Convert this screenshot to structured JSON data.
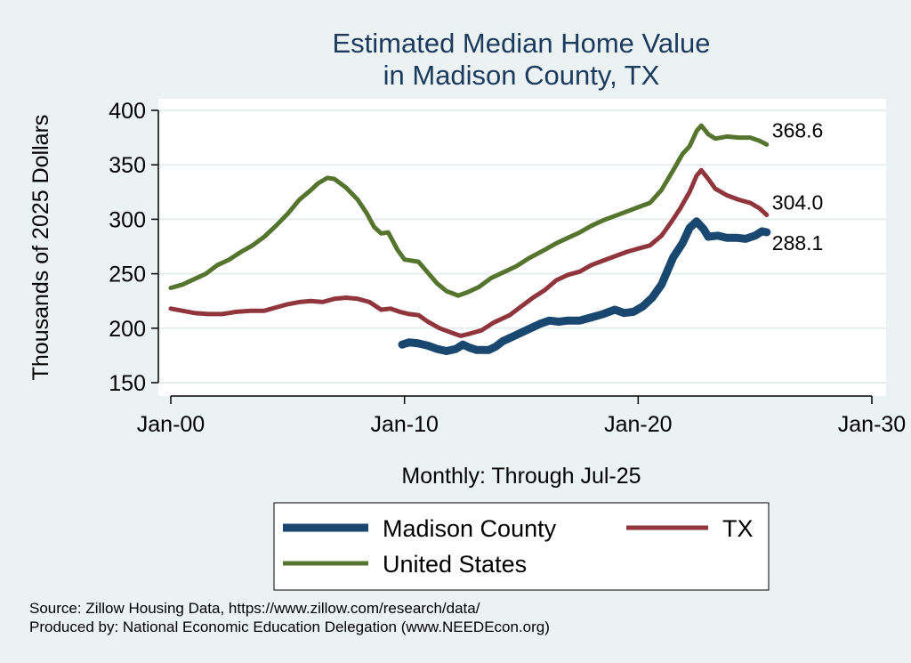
{
  "chart_data": {
    "type": "line",
    "title": [
      "Estimated Median Home Value",
      "in Madison County, TX"
    ],
    "xlabel": "Monthly: Through Jul-25",
    "ylabel": "Thousands of 2025 Dollars",
    "xlim": [
      2000,
      2030
    ],
    "ylim": [
      140,
      410
    ],
    "xticks": [
      {
        "value": 2000,
        "label": "Jan-00"
      },
      {
        "value": 2010,
        "label": "Jan-10"
      },
      {
        "value": 2020,
        "label": "Jan-20"
      },
      {
        "value": 2030,
        "label": "Jan-30"
      }
    ],
    "yticks": [
      150,
      200,
      250,
      300,
      350,
      400
    ],
    "grid": true,
    "legend_position": "bottom",
    "series": [
      {
        "name": "Madison County",
        "color": "#1a476f",
        "end_label": "288.1",
        "points": [
          [
            2009.9,
            185
          ],
          [
            2010.2,
            187
          ],
          [
            2010.6,
            186
          ],
          [
            2011.0,
            184
          ],
          [
            2011.4,
            181
          ],
          [
            2011.8,
            179
          ],
          [
            2012.2,
            181
          ],
          [
            2012.5,
            185
          ],
          [
            2012.8,
            182
          ],
          [
            2013.1,
            180
          ],
          [
            2013.6,
            180
          ],
          [
            2013.9,
            183
          ],
          [
            2014.2,
            188
          ],
          [
            2014.7,
            193
          ],
          [
            2015.3,
            199
          ],
          [
            2015.8,
            204
          ],
          [
            2016.2,
            207
          ],
          [
            2016.6,
            206
          ],
          [
            2017.0,
            207
          ],
          [
            2017.5,
            207
          ],
          [
            2018.0,
            210
          ],
          [
            2018.5,
            213
          ],
          [
            2019.0,
            217
          ],
          [
            2019.4,
            214
          ],
          [
            2019.8,
            215
          ],
          [
            2020.2,
            220
          ],
          [
            2020.6,
            228
          ],
          [
            2021.0,
            240
          ],
          [
            2021.5,
            265
          ],
          [
            2021.9,
            278
          ],
          [
            2022.2,
            292
          ],
          [
            2022.5,
            298
          ],
          [
            2022.8,
            291
          ],
          [
            2023.0,
            284
          ],
          [
            2023.4,
            285
          ],
          [
            2023.8,
            283
          ],
          [
            2024.2,
            283
          ],
          [
            2024.6,
            282
          ],
          [
            2025.0,
            285
          ],
          [
            2025.3,
            289
          ],
          [
            2025.5,
            288.1
          ]
        ]
      },
      {
        "name": "TX",
        "color": "#90353b",
        "end_label": "304.0",
        "points": [
          [
            2000.0,
            218
          ],
          [
            2000.5,
            216
          ],
          [
            2001.0,
            214
          ],
          [
            2001.6,
            213
          ],
          [
            2002.2,
            213
          ],
          [
            2002.8,
            215
          ],
          [
            2003.4,
            216
          ],
          [
            2004.0,
            216
          ],
          [
            2004.5,
            219
          ],
          [
            2005.0,
            222
          ],
          [
            2005.5,
            224
          ],
          [
            2006.0,
            225
          ],
          [
            2006.5,
            224
          ],
          [
            2007.0,
            227
          ],
          [
            2007.5,
            228
          ],
          [
            2008.0,
            227
          ],
          [
            2008.5,
            224
          ],
          [
            2009.0,
            217
          ],
          [
            2009.4,
            218
          ],
          [
            2009.8,
            215
          ],
          [
            2010.2,
            213
          ],
          [
            2010.6,
            212
          ],
          [
            2011.0,
            206
          ],
          [
            2011.5,
            200
          ],
          [
            2012.0,
            196
          ],
          [
            2012.4,
            193
          ],
          [
            2012.8,
            195
          ],
          [
            2013.3,
            198
          ],
          [
            2013.8,
            205
          ],
          [
            2014.5,
            212
          ],
          [
            2015.0,
            220
          ],
          [
            2015.5,
            228
          ],
          [
            2016.0,
            235
          ],
          [
            2016.5,
            244
          ],
          [
            2017.0,
            249
          ],
          [
            2017.5,
            252
          ],
          [
            2018.0,
            258
          ],
          [
            2018.5,
            262
          ],
          [
            2019.0,
            266
          ],
          [
            2019.5,
            270
          ],
          [
            2020.0,
            273
          ],
          [
            2020.5,
            276
          ],
          [
            2021.0,
            285
          ],
          [
            2021.4,
            297
          ],
          [
            2021.8,
            310
          ],
          [
            2022.2,
            325
          ],
          [
            2022.5,
            340
          ],
          [
            2022.7,
            345
          ],
          [
            2023.0,
            337
          ],
          [
            2023.3,
            328
          ],
          [
            2023.8,
            322
          ],
          [
            2024.3,
            318
          ],
          [
            2024.8,
            315
          ],
          [
            2025.2,
            310
          ],
          [
            2025.5,
            304.0
          ]
        ]
      },
      {
        "name": "United States",
        "color": "#55752f",
        "end_label": "368.6",
        "points": [
          [
            2000.0,
            237
          ],
          [
            2000.5,
            240
          ],
          [
            2001.0,
            245
          ],
          [
            2001.5,
            250
          ],
          [
            2002.0,
            258
          ],
          [
            2002.5,
            263
          ],
          [
            2003.0,
            270
          ],
          [
            2003.5,
            276
          ],
          [
            2004.0,
            284
          ],
          [
            2004.5,
            294
          ],
          [
            2005.0,
            305
          ],
          [
            2005.5,
            318
          ],
          [
            2006.0,
            327
          ],
          [
            2006.3,
            333
          ],
          [
            2006.7,
            338
          ],
          [
            2007.0,
            337
          ],
          [
            2007.5,
            329
          ],
          [
            2008.0,
            318
          ],
          [
            2008.4,
            305
          ],
          [
            2008.7,
            293
          ],
          [
            2009.0,
            287
          ],
          [
            2009.3,
            288
          ],
          [
            2009.7,
            272
          ],
          [
            2010.0,
            263
          ],
          [
            2010.6,
            261
          ],
          [
            2011.0,
            251
          ],
          [
            2011.4,
            241
          ],
          [
            2011.8,
            234
          ],
          [
            2012.3,
            230
          ],
          [
            2012.7,
            233
          ],
          [
            2013.2,
            238
          ],
          [
            2013.7,
            246
          ],
          [
            2014.3,
            252
          ],
          [
            2014.8,
            257
          ],
          [
            2015.3,
            264
          ],
          [
            2016.0,
            272
          ],
          [
            2016.5,
            278
          ],
          [
            2017.0,
            283
          ],
          [
            2017.5,
            288
          ],
          [
            2018.0,
            294
          ],
          [
            2018.5,
            299
          ],
          [
            2019.0,
            303
          ],
          [
            2019.5,
            307
          ],
          [
            2020.0,
            311
          ],
          [
            2020.5,
            315
          ],
          [
            2021.0,
            327
          ],
          [
            2021.5,
            345
          ],
          [
            2021.9,
            360
          ],
          [
            2022.2,
            367
          ],
          [
            2022.5,
            381
          ],
          [
            2022.7,
            386
          ],
          [
            2023.0,
            378
          ],
          [
            2023.3,
            374
          ],
          [
            2023.8,
            376
          ],
          [
            2024.3,
            375
          ],
          [
            2024.8,
            375
          ],
          [
            2025.2,
            372
          ],
          [
            2025.5,
            368.6
          ]
        ]
      }
    ],
    "source": [
      "Source: Zillow Housing Data, https://www.zillow.com/research/data/",
      "Produced by: National Economic Education Delegation (www.NEEDEcon.org)"
    ]
  }
}
